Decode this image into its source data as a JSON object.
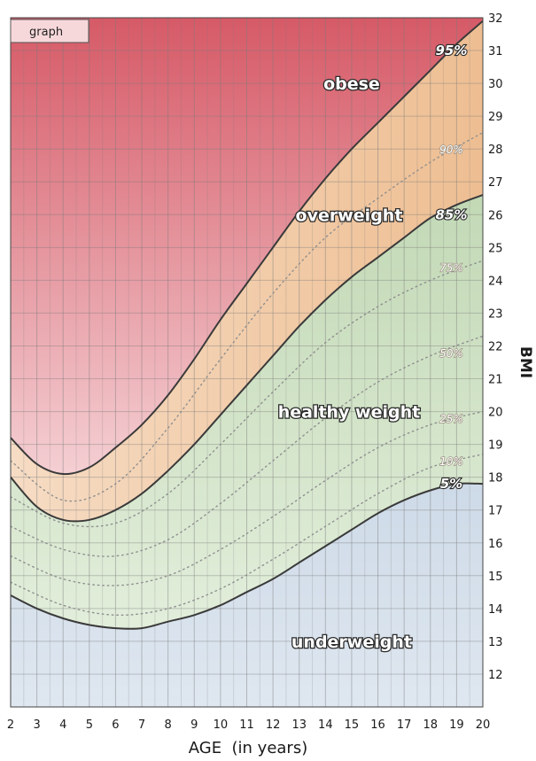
{
  "tab_label": "graph",
  "chart_data": {
    "type": "area",
    "title": "",
    "xlabel": "AGE  (in years)",
    "ylabel": "BMI",
    "xlim": [
      2,
      20
    ],
    "ylim": [
      11,
      32
    ],
    "x_ticks": [
      2,
      3,
      4,
      5,
      6,
      7,
      8,
      9,
      10,
      11,
      12,
      13,
      14,
      15,
      16,
      17,
      18,
      19,
      20
    ],
    "y_ticks": [
      12,
      13,
      14,
      15,
      16,
      17,
      18,
      19,
      20,
      21,
      22,
      23,
      24,
      25,
      26,
      27,
      28,
      29,
      30,
      31,
      32
    ],
    "grid": true,
    "zones": [
      {
        "label": "underweight",
        "color": "#b7c9dc"
      },
      {
        "label": "healthy weight",
        "color": "#c8dcbd"
      },
      {
        "label": "overweight",
        "color": "#f0c9a0"
      },
      {
        "label": "obese",
        "color": "#e59aa6"
      }
    ],
    "percentile_curves": [
      {
        "label": "5%",
        "style": "solid",
        "x": [
          2,
          3,
          4,
          5,
          6,
          7,
          8,
          9,
          10,
          11,
          12,
          13,
          14,
          15,
          16,
          17,
          18,
          19,
          20
        ],
        "y": [
          14.4,
          14.0,
          13.7,
          13.5,
          13.4,
          13.4,
          13.6,
          13.8,
          14.1,
          14.5,
          14.9,
          15.4,
          15.9,
          16.4,
          16.9,
          17.3,
          17.6,
          17.8,
          17.8
        ]
      },
      {
        "label": "10%",
        "style": "dotted",
        "x": [
          2,
          4,
          6,
          8,
          10,
          12,
          14,
          16,
          18,
          20
        ],
        "y": [
          14.8,
          14.1,
          13.8,
          14.0,
          14.6,
          15.5,
          16.5,
          17.5,
          18.3,
          18.7
        ]
      },
      {
        "label": "25%",
        "style": "dotted",
        "x": [
          2,
          4,
          6,
          8,
          10,
          12,
          14,
          16,
          18,
          20
        ],
        "y": [
          15.6,
          14.9,
          14.7,
          15.0,
          15.8,
          16.8,
          17.9,
          18.9,
          19.6,
          20.0
        ]
      },
      {
        "label": "50%",
        "style": "dotted",
        "x": [
          2,
          4,
          6,
          8,
          10,
          12,
          14,
          16,
          18,
          20
        ],
        "y": [
          16.5,
          15.8,
          15.6,
          16.1,
          17.2,
          18.5,
          19.8,
          20.9,
          21.7,
          22.3
        ]
      },
      {
        "label": "75%",
        "style": "dotted",
        "x": [
          2,
          4,
          6,
          8,
          10,
          12,
          14,
          16,
          18,
          20
        ],
        "y": [
          17.4,
          16.6,
          16.6,
          17.5,
          19.0,
          20.6,
          22.1,
          23.2,
          24.0,
          24.6
        ]
      },
      {
        "label": "85%",
        "style": "solid",
        "x": [
          2,
          3,
          4,
          5,
          6,
          7,
          8,
          9,
          10,
          11,
          12,
          13,
          14,
          15,
          16,
          17,
          18,
          19,
          20
        ],
        "y": [
          18.0,
          17.1,
          16.7,
          16.7,
          17.0,
          17.5,
          18.2,
          19.0,
          19.9,
          20.8,
          21.7,
          22.6,
          23.4,
          24.1,
          24.7,
          25.3,
          25.9,
          26.3,
          26.6
        ]
      },
      {
        "label": "90%",
        "style": "dotted",
        "x": [
          2,
          4,
          6,
          8,
          10,
          12,
          14,
          16,
          18,
          20
        ],
        "y": [
          18.5,
          17.3,
          17.8,
          19.5,
          21.6,
          23.6,
          25.3,
          26.5,
          27.6,
          28.5
        ]
      },
      {
        "label": "95%",
        "style": "solid",
        "x": [
          2,
          3,
          4,
          5,
          6,
          7,
          8,
          9,
          10,
          11,
          12,
          13,
          14,
          15,
          16,
          17,
          18,
          19,
          20
        ],
        "y": [
          19.2,
          18.4,
          18.1,
          18.3,
          18.9,
          19.6,
          20.5,
          21.6,
          22.8,
          23.9,
          25.0,
          26.1,
          27.1,
          28.0,
          28.8,
          29.6,
          30.4,
          31.2,
          31.9
        ]
      }
    ],
    "zone_labels": [
      {
        "label": "obese",
        "x": 15.0,
        "y": 30.0
      },
      {
        "label": "overweight",
        "x": 14.9,
        "y": 26.0
      },
      {
        "label": "healthy weight",
        "x": 14.9,
        "y": 20.0
      },
      {
        "label": "underweight",
        "x": 15.0,
        "y": 13.0
      }
    ],
    "percentile_labels": [
      {
        "label": "95%",
        "x": 18.8,
        "y": 31.0,
        "major": true
      },
      {
        "label": "90%",
        "x": 18.8,
        "y": 28.0,
        "major": false
      },
      {
        "label": "85%",
        "x": 18.8,
        "y": 26.0,
        "major": true
      },
      {
        "label": "75%",
        "x": 18.8,
        "y": 24.4,
        "major": false
      },
      {
        "label": "50%",
        "x": 18.8,
        "y": 21.8,
        "major": false
      },
      {
        "label": "25%",
        "x": 18.8,
        "y": 19.8,
        "major": false
      },
      {
        "label": "10%",
        "x": 18.8,
        "y": 18.5,
        "major": false
      },
      {
        "label": "5%",
        "x": 18.8,
        "y": 17.8,
        "major": true
      }
    ]
  }
}
